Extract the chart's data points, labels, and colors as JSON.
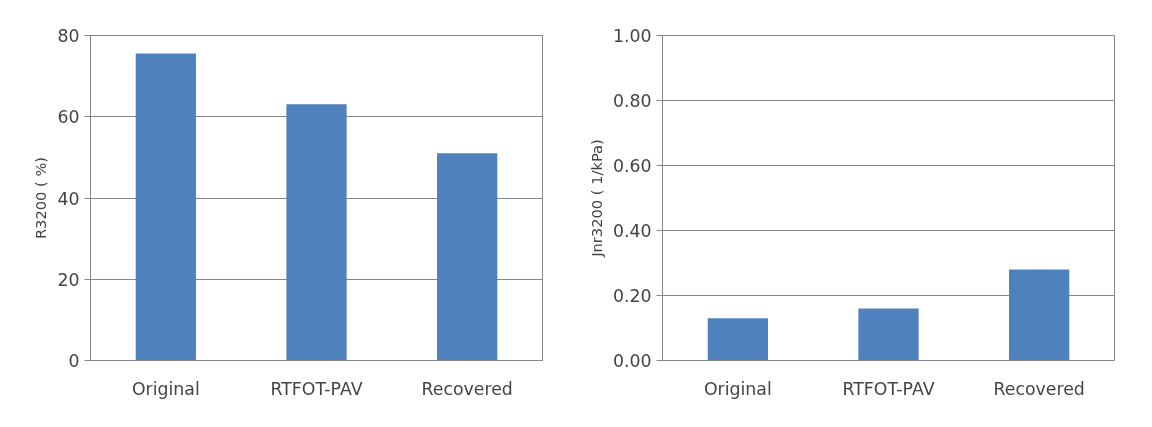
{
  "chart_data": [
    {
      "type": "bar",
      "ylabel": "R3200 ( %)",
      "categories": [
        "Original",
        "RTFOT-PAV",
        "Recovered"
      ],
      "values": [
        75.6,
        63.1,
        51.0
      ],
      "color": "#4f81bd",
      "ylim": [
        0,
        80
      ],
      "yticks": [
        0,
        20,
        40,
        60,
        80
      ],
      "grid": "y"
    },
    {
      "type": "bar",
      "ylabel": "Jnr3200 ( 1/kPa)",
      "categories": [
        "Original",
        "RTFOT-PAV",
        "Recovered"
      ],
      "values": [
        0.13,
        0.16,
        0.28
      ],
      "color": "#4f81bd",
      "ylim": [
        0,
        1.0
      ],
      "yticks": [
        {
          "value": 0,
          "label": "0.00"
        },
        {
          "value": 0.2,
          "label": "0.20"
        },
        {
          "value": 0.4,
          "label": "0.40"
        },
        {
          "value": 0.6,
          "label": "0.60"
        },
        {
          "value": 0.8,
          "label": "0.80"
        },
        {
          "value": 1.0,
          "label": "1.00"
        }
      ],
      "grid": "y"
    }
  ]
}
